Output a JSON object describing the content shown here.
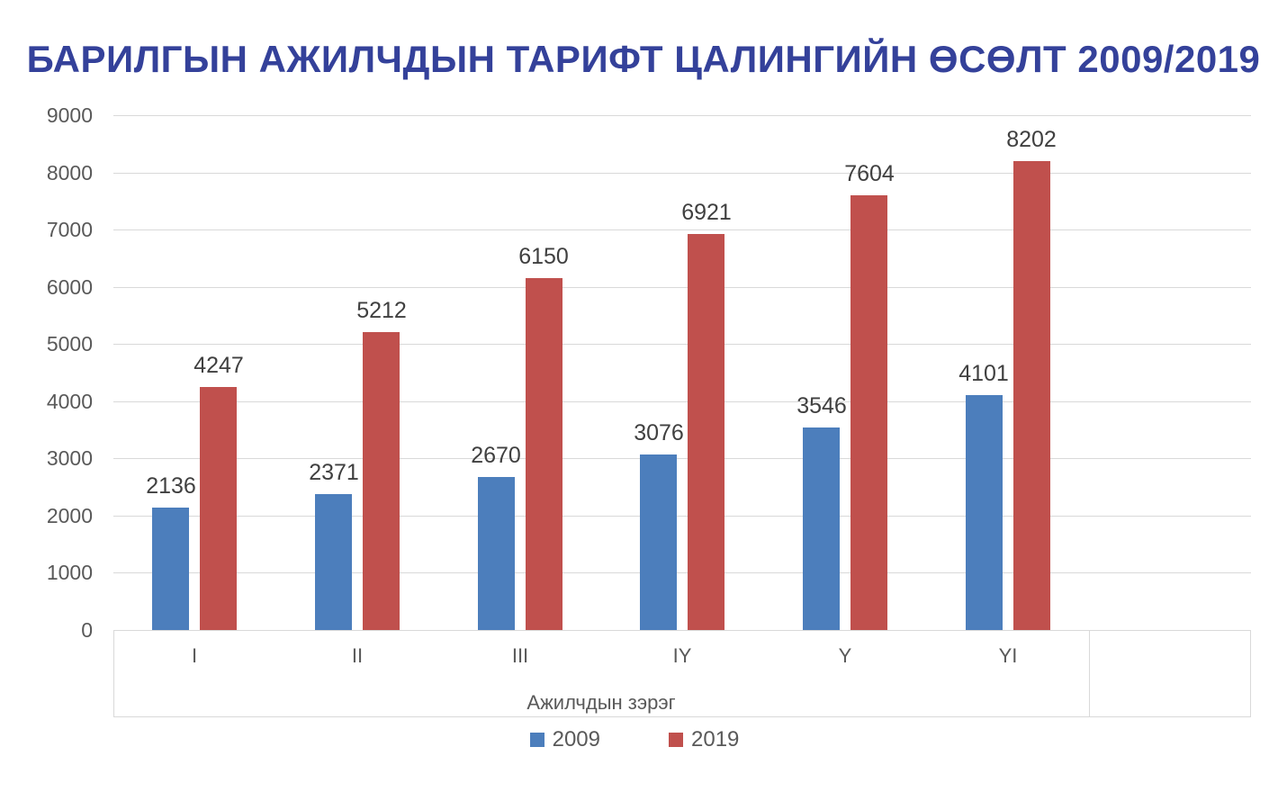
{
  "title": {
    "text": "БАРИЛГЫН АЖИЛЧДЫН ТАРИФТ ЦАЛИНГИЙН ӨСӨЛТ 2009/2019",
    "color": "#34419A"
  },
  "chart_data": {
    "type": "bar",
    "categories": [
      "I",
      "II",
      "III",
      "IY",
      "Y",
      "YI"
    ],
    "series": [
      {
        "name": "2009",
        "color": "#4C7EBC",
        "values": [
          2136,
          2371,
          2670,
          3076,
          3546,
          4101
        ]
      },
      {
        "name": "2019",
        "color": "#C0504D",
        "values": [
          4247,
          5212,
          6150,
          6921,
          7604,
          8202
        ]
      }
    ],
    "xlabel": "Ажилчдын зэрэг",
    "ylabel": "",
    "ylim": [
      0,
      9000
    ],
    "yticks": [
      0,
      1000,
      2000,
      3000,
      4000,
      5000,
      6000,
      7000,
      8000,
      9000
    ],
    "grid": true,
    "data_labels": true,
    "legend_position": "bottom"
  },
  "styles": {
    "background": "#FFFFFF",
    "grid_color": "#D9D9D9",
    "tick_label_color": "#595959",
    "data_label_color": "#404040"
  }
}
